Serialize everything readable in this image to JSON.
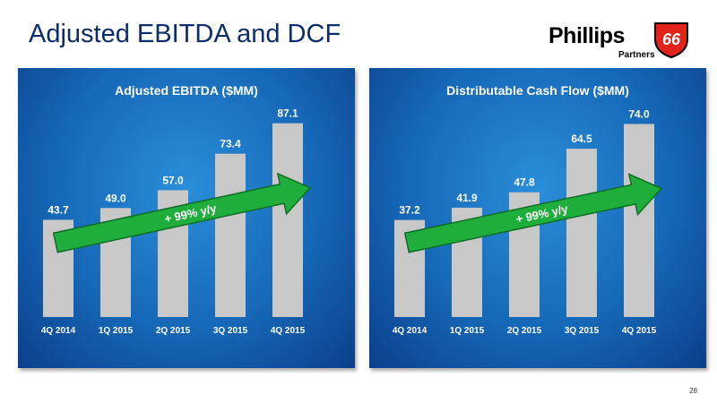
{
  "page": {
    "title": "Adjusted EBITDA and DCF",
    "page_number": "28"
  },
  "logo": {
    "wordmark": "Phillips",
    "number": "66",
    "subtitle": "Partners",
    "colors": {
      "shield": "#e2231a",
      "text": "#000000"
    }
  },
  "colors": {
    "title": "#0b2d6b",
    "panel": "#1668b8",
    "bar": "#c8c8c8",
    "arrow": "#1fae3c",
    "label": "#ffffff"
  },
  "chart_data": [
    {
      "type": "bar",
      "title": "Adjusted EBITDA ($MM)",
      "categories": [
        "4Q 2014",
        "1Q 2015",
        "2Q 2015",
        "3Q 2015",
        "4Q 2015"
      ],
      "values": [
        43.7,
        49.0,
        57.0,
        73.4,
        87.1
      ],
      "value_labels": [
        "43.7",
        "49.0",
        "57.0",
        "73.4",
        "87.1"
      ],
      "annotation": "+ 99% y/y",
      "ylim": [
        0,
        95
      ],
      "grid": false
    },
    {
      "type": "bar",
      "title": "Distributable Cash Flow ($MM)",
      "categories": [
        "4Q 2014",
        "1Q 2015",
        "2Q 2015",
        "3Q 2015",
        "4Q 2015"
      ],
      "values": [
        37.2,
        41.9,
        47.8,
        64.5,
        74.0
      ],
      "value_labels": [
        "37.2",
        "41.9",
        "47.8",
        "64.5",
        "74.0"
      ],
      "annotation": "+ 99% y/y",
      "ylim": [
        0,
        81
      ],
      "grid": false
    }
  ]
}
